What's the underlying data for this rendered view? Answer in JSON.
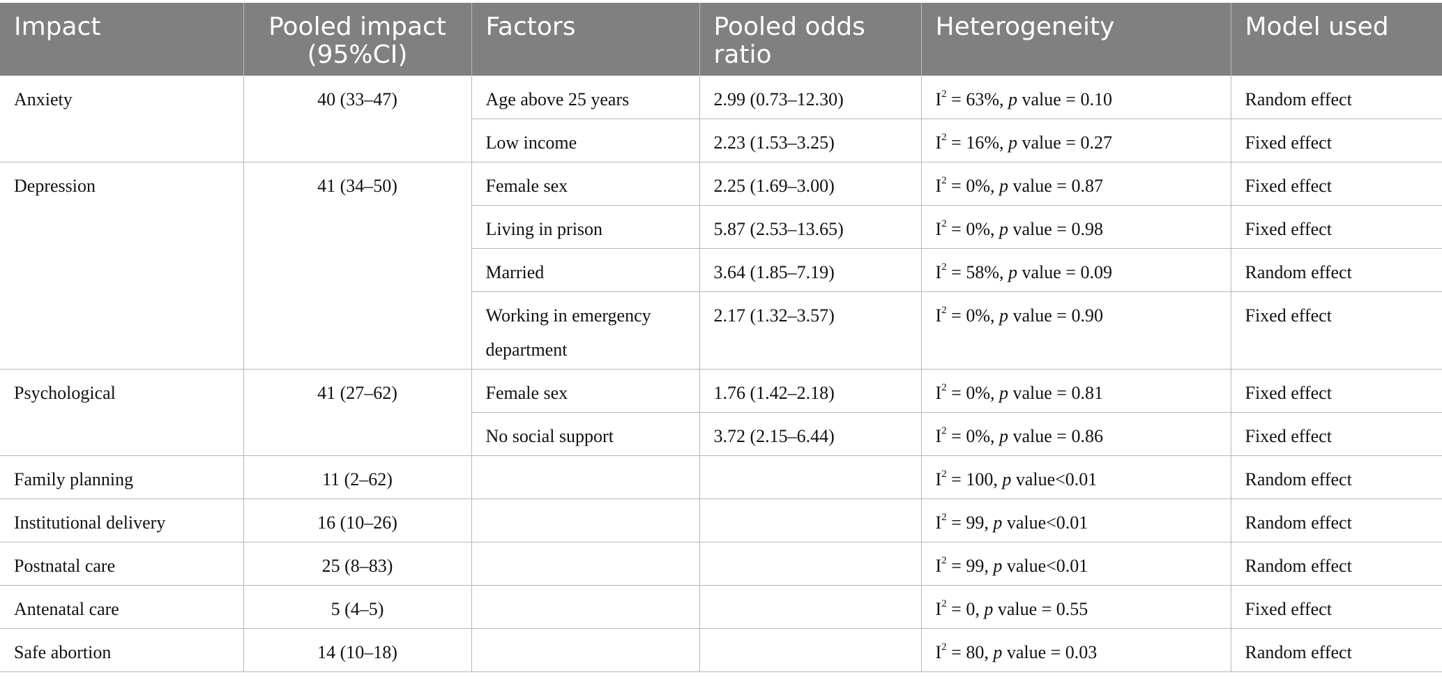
{
  "headers": [
    "Impact",
    "Pooled impact (95%CI)",
    "Factors",
    "Pooled odds ratio",
    "Heterogeneity",
    "Model used"
  ],
  "groups": [
    {
      "impact": "Anxiety",
      "pooled": "40 (33–47)",
      "rows": [
        {
          "factor": "Age above 25 years",
          "or": "2.99 (0.73–12.30)",
          "i2": "= 63%,",
          "p": "value = 0.10",
          "model": "Random effect"
        },
        {
          "factor": "Low income",
          "or": "2.23 (1.53–3.25)",
          "i2": "= 16%,",
          "p": "value = 0.27",
          "model": "Fixed effect"
        }
      ]
    },
    {
      "impact": "Depression",
      "pooled": "41 (34–50)",
      "rows": [
        {
          "factor": "Female sex",
          "or": "2.25 (1.69–3.00)",
          "i2": "= 0%,",
          "p": "value = 0.87",
          "model": "Fixed effect"
        },
        {
          "factor": "Living in prison",
          "or": "5.87 (2.53–13.65)",
          "i2": "= 0%,",
          "p": "value = 0.98",
          "model": "Fixed effect"
        },
        {
          "factor": "Married",
          "or": "3.64 (1.85–7.19)",
          "i2": "= 58%,",
          "p": "value = 0.09",
          "model": "Random effect"
        },
        {
          "factor": "Working in emergency department",
          "or": "2.17 (1.32–3.57)",
          "i2": "= 0%,",
          "p": "value = 0.90",
          "model": "Fixed effect"
        }
      ]
    },
    {
      "impact": "Psychological",
      "pooled": "41 (27–62)",
      "rows": [
        {
          "factor": "Female sex",
          "or": "1.76 (1.42–2.18)",
          "i2": "= 0%,",
          "p": "value = 0.81",
          "model": "Fixed effect"
        },
        {
          "factor": "No social support",
          "or": "3.72 (2.15–6.44)",
          "i2": "= 0%,",
          "p": "value = 0.86",
          "model": "Fixed effect"
        }
      ]
    },
    {
      "impact": "Family planning",
      "pooled": "11 (2–62)",
      "rows": [
        {
          "factor": "",
          "or": "",
          "i2": "= 100,",
          "p": "value<0.01",
          "model": "Random effect"
        }
      ]
    },
    {
      "impact": "Institutional delivery",
      "pooled": "16 (10–26)",
      "rows": [
        {
          "factor": "",
          "or": "",
          "i2": "= 99,",
          "p": "value<0.01",
          "model": "Random effect"
        }
      ]
    },
    {
      "impact": "Postnatal care",
      "pooled": "25 (8–83)",
      "rows": [
        {
          "factor": "",
          "or": "",
          "i2": "= 99,",
          "p": "value<0.01",
          "model": "Random effect"
        }
      ]
    },
    {
      "impact": "Antenatal care",
      "pooled": "5 (4–5)",
      "rows": [
        {
          "factor": "",
          "or": "",
          "i2": "= 0,",
          "p": "value = 0.55",
          "model": "Fixed effect"
        }
      ]
    },
    {
      "impact": "Safe abortion",
      "pooled": "14 (10–18)",
      "rows": [
        {
          "factor": "",
          "or": "",
          "i2": "= 80,",
          "p": "value = 0.03",
          "model": "Random effect"
        }
      ]
    }
  ]
}
